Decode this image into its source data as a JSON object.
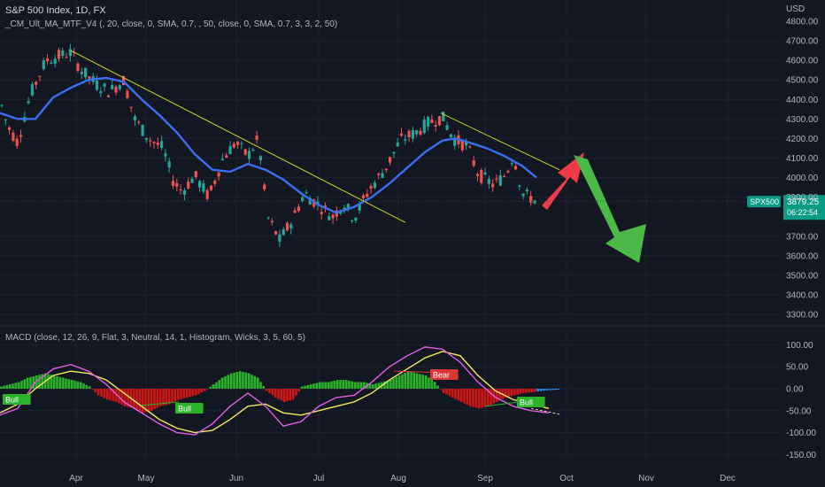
{
  "header": {
    "title": "S&P 500 Index, 1D, FX",
    "indicator": "_CM_Ult_MA_MTF_V4 (, 20, close, 0, SMA, 0.7, , 50, close, 0, SMA, 0.7, 3, 3, 2, 50)",
    "macd_label": "MACD (close, 12, 26, 9, Flat, 3, Neutral, 14, 1, Histogram, Wicks, 3, 5, 60, 5)"
  },
  "price_axis": {
    "currency": "USD",
    "ticks": [
      "4800.00",
      "4700.00",
      "4600.00",
      "4500.00",
      "4400.00",
      "4300.00",
      "4200.00",
      "4100.00",
      "4000.00",
      "3900.00",
      "3700.00",
      "3600.00",
      "3500.00",
      "3400.00",
      "3300.00"
    ],
    "tick_values": [
      4800,
      4700,
      4600,
      4500,
      4400,
      4300,
      4200,
      4100,
      4000,
      3900,
      3700,
      3600,
      3500,
      3400,
      3300
    ]
  },
  "macd_axis": {
    "ticks": [
      "100.00",
      "50.00",
      "0.00",
      "-50.00",
      "-100.00",
      "-150.00"
    ],
    "tick_values": [
      100,
      50,
      0,
      -50,
      -100,
      -150
    ]
  },
  "time_axis": [
    "Apr",
    "May",
    "Jun",
    "Jul",
    "Aug",
    "Sep",
    "Oct",
    "Nov",
    "Dec"
  ],
  "price_tag": {
    "symbol": "SPX500",
    "price": "3879.25",
    "countdown": "06:22:54"
  },
  "labels": {
    "bull1": "Bull",
    "bull2": "Bull",
    "bear": "Bear",
    "bull3": "Bull"
  },
  "colors": {
    "background": "#131722",
    "up_candle": "#26a69a",
    "down_candle": "#ef5350",
    "ma_line": "#3b6ff0",
    "trendline": "#d4d431",
    "macd_line": "#e15ee6",
    "signal_line": "#f4ec5e",
    "hist_up": "#2bb32b",
    "hist_down": "#d01717",
    "arrow_up": "#f03a4a",
    "arrow_down": "#4cb848",
    "tag": "#0a9b84"
  },
  "chart_data": [
    {
      "type": "candlestick",
      "title": "S&P 500 Index, 1D, FX",
      "x": [
        "2022-03-21",
        "2022-03-29",
        "2022-04-08",
        "2022-04-20",
        "2022-05-05",
        "2022-05-20",
        "2022-06-03",
        "2022-06-16",
        "2022-06-30",
        "2022-07-14",
        "2022-07-28",
        "2022-08-16",
        "2022-08-26",
        "2022-09-12",
        "2022-09-20"
      ],
      "series": [
        {
          "name": "close",
          "values": [
            4420,
            4630,
            4490,
            4460,
            4300,
            3900,
            4110,
            3680,
            3820,
            3780,
            4100,
            4300,
            4070,
            4110,
            3879.25
          ]
        },
        {
          "name": "SMA 20",
          "values": [
            4330,
            4450,
            4500,
            4420,
            4320,
            4080,
            4020,
            3930,
            3810,
            3790,
            3960,
            4180,
            4170,
            4020,
            3960
          ]
        }
      ],
      "ylim": [
        3250,
        4850
      ],
      "ylabel": "USD"
    },
    {
      "type": "line",
      "title": "MACD",
      "x": [
        "2022-03-21",
        "2022-04-06",
        "2022-05-03",
        "2022-05-25",
        "2022-06-16",
        "2022-07-10",
        "2022-08-10",
        "2022-08-16",
        "2022-09-06",
        "2022-09-26"
      ],
      "series": [
        {
          "name": "MACD",
          "values": [
            -50,
            50,
            -40,
            -100,
            -90,
            -30,
            60,
            95,
            -30,
            -60
          ]
        },
        {
          "name": "Signal",
          "values": [
            -40,
            40,
            -10,
            -100,
            -45,
            -45,
            40,
            90,
            -20,
            -55
          ]
        }
      ],
      "ylim": [
        -160,
        110
      ]
    }
  ]
}
